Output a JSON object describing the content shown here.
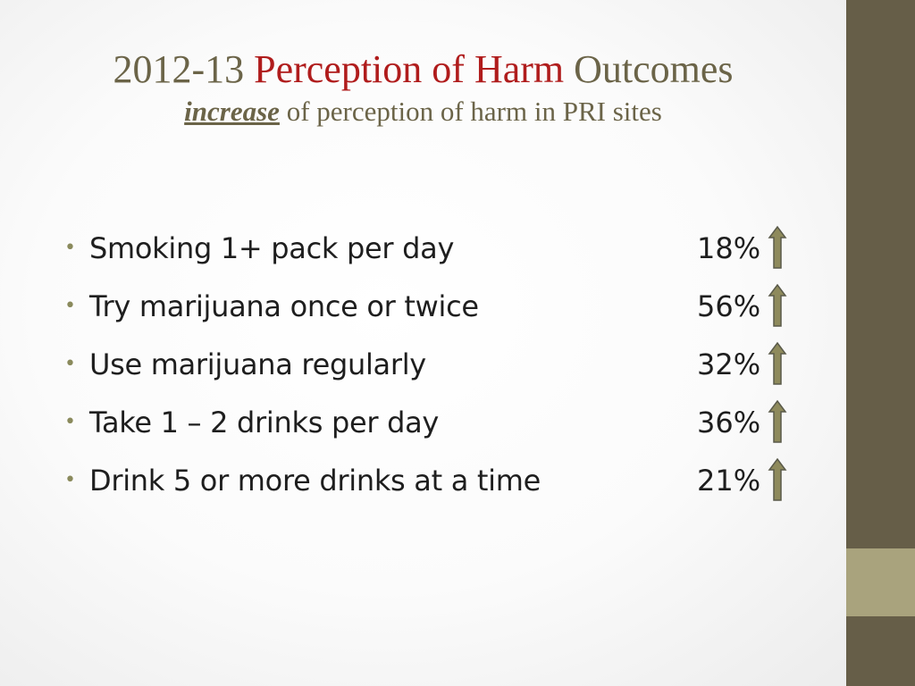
{
  "title": {
    "year": "2012-13",
    "highlight": "Perception of Harm",
    "rest": "Outcomes",
    "subtitle_emphasis": "increase",
    "subtitle_rest": "of perception of harm in PRI sites"
  },
  "items": [
    {
      "label": "Smoking 1+ pack per day",
      "value": "18%",
      "icon": "up-arrow-icon"
    },
    {
      "label": "Try marijuana once or twice",
      "value": "56%",
      "icon": "up-arrow-icon"
    },
    {
      "label": "Use marijuana regularly",
      "value": "32%",
      "icon": "up-arrow-icon"
    },
    {
      "label": "Take 1 – 2 drinks per day",
      "value": "36%",
      "icon": "up-arrow-icon"
    },
    {
      "label": "Drink 5 or more drinks at a time",
      "value": "21%",
      "icon": "up-arrow-icon"
    }
  ],
  "colors": {
    "title_text": "#6b6448",
    "highlight": "#b01c1c",
    "body_text": "#1e1e1e",
    "bullet": "#8a8a5c",
    "side_bar_dark": "#665e48",
    "side_bar_light": "#a9a37d",
    "arrow_fill": "#8e8a5c",
    "arrow_stroke": "#5a5a4a"
  }
}
